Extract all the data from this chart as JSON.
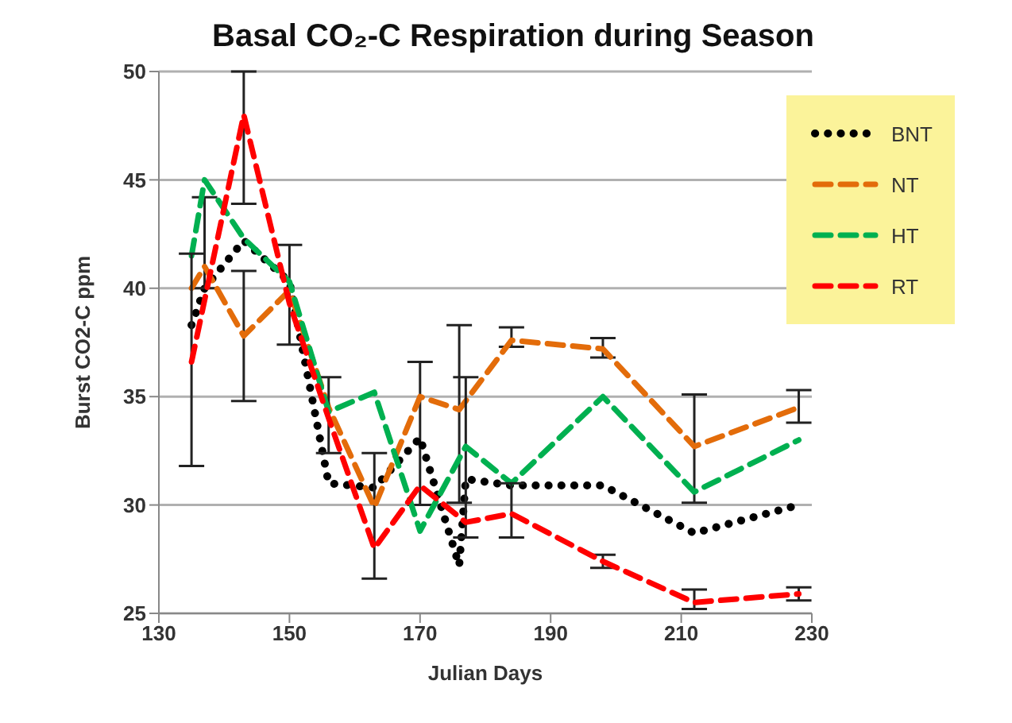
{
  "chart_data": {
    "type": "line",
    "title": "Basal CO₂-C Respiration during Season",
    "xlabel": "Julian Days",
    "ylabel": "Burst CO2-C ppm",
    "xlim": [
      130,
      230
    ],
    "xticks": [
      130,
      150,
      170,
      190,
      210,
      230
    ],
    "ylim": [
      25,
      50
    ],
    "yticks": [
      25,
      30,
      35,
      40,
      45,
      50
    ],
    "grid": "y",
    "legend": "top right",
    "marker": "none",
    "series": [
      {
        "name": "BNT",
        "color": "#000000",
        "line_style": "dotted",
        "x": [
          135,
          137,
          143,
          150,
          156,
          163,
          170,
          176,
          177,
          184,
          198,
          212,
          228
        ],
        "values": [
          38.3,
          40,
          42.2,
          40.3,
          31,
          30.8,
          33.1,
          27.2,
          31.2,
          30.9,
          30.9,
          28.7,
          30
        ],
        "errors": [
          null,
          null,
          null,
          [
            37.4,
            42
          ],
          null,
          null,
          [
            30,
            36.6
          ],
          null,
          null,
          null,
          null,
          null,
          null
        ]
      },
      {
        "name": "NT",
        "color": "#e36c0a",
        "line_style": "dashed",
        "x": [
          135,
          137,
          143,
          150,
          156,
          163,
          170,
          176,
          184,
          198,
          212,
          228
        ],
        "values": [
          40,
          41,
          37.8,
          39.9,
          34.5,
          29.9,
          35,
          34.4,
          37.6,
          37.2,
          32.7,
          34.5
        ],
        "errors": [
          null,
          [
            40,
            44.2
          ],
          [
            34.8,
            40.8
          ],
          null,
          null,
          [
            26.6,
            32.4
          ],
          null,
          [
            30.1,
            38.3
          ],
          [
            37.3,
            38.2
          ],
          [
            36.8,
            37.7
          ],
          [
            30.1,
            35.1
          ],
          [
            33.8,
            35.3
          ]
        ]
      },
      {
        "name": "HT",
        "color": "#00b050",
        "line_style": "dashed",
        "x": [
          135,
          137,
          143,
          150,
          156,
          163,
          170,
          177,
          184,
          198,
          212,
          228
        ],
        "values": [
          41.5,
          45,
          42.3,
          40.3,
          34.3,
          35.2,
          28.8,
          32.7,
          31,
          35,
          30.6,
          33
        ],
        "errors": [
          null,
          null,
          null,
          null,
          [
            32.4,
            35.9
          ],
          null,
          null,
          [
            28.5,
            35.9
          ],
          null,
          null,
          null,
          null
        ]
      },
      {
        "name": "RT",
        "color": "#ff0000",
        "line_style": "dashed",
        "x": [
          135,
          143,
          150,
          156,
          163,
          170,
          177,
          184,
          198,
          212,
          228
        ],
        "values": [
          36.6,
          48,
          39.3,
          34,
          28,
          30.9,
          29.2,
          29.6,
          27.4,
          25.5,
          25.9
        ],
        "errors": [
          [
            31.8,
            41.6
          ],
          [
            43.9,
            50
          ],
          null,
          null,
          null,
          null,
          null,
          [
            28.5,
            31
          ],
          [
            27.1,
            27.7
          ],
          [
            25.2,
            26.1
          ],
          [
            25.6,
            26.2
          ]
        ]
      }
    ]
  }
}
